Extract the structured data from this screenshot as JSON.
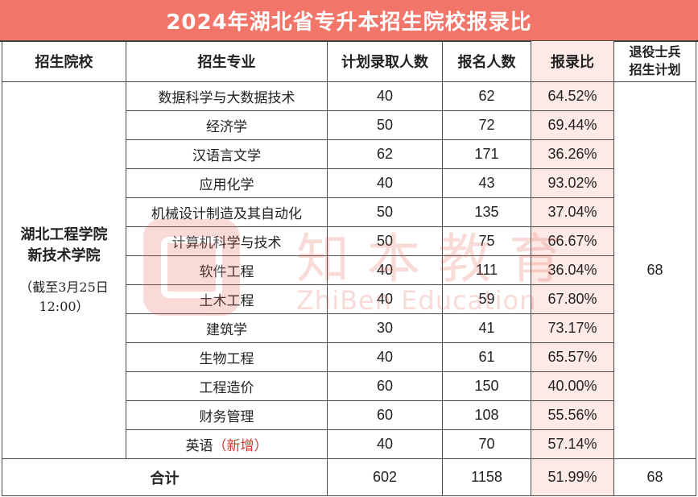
{
  "title": "2024年湖北省专升本招生院校报录比",
  "headers": {
    "school": "招生院校",
    "major": "招生专业",
    "plan": "计划录取人数",
    "applicants": "报名人数",
    "ratio": "报录比",
    "veteran_line1": "退役士兵",
    "veteran_line2": "招生计划"
  },
  "school": {
    "name_line1": "湖北工程学院",
    "name_line2": "新技术学院",
    "note_line1": "（截至3月25日",
    "note_line2": "12:00）"
  },
  "rows": [
    {
      "major": "数据科学与大数据技术",
      "plan": "40",
      "applicants": "62",
      "ratio": "64.52%"
    },
    {
      "major": "经济学",
      "plan": "50",
      "applicants": "72",
      "ratio": "69.44%"
    },
    {
      "major": "汉语言文学",
      "plan": "62",
      "applicants": "171",
      "ratio": "36.26%"
    },
    {
      "major": "应用化学",
      "plan": "40",
      "applicants": "43",
      "ratio": "93.02%"
    },
    {
      "major": "机械设计制造及其自动化",
      "plan": "50",
      "applicants": "135",
      "ratio": "37.04%"
    },
    {
      "major": "计算机科学与技术",
      "plan": "50",
      "applicants": "75",
      "ratio": "66.67%"
    },
    {
      "major": "软件工程",
      "plan": "40",
      "applicants": "111",
      "ratio": "36.04%"
    },
    {
      "major": "土木工程",
      "plan": "40",
      "applicants": "59",
      "ratio": "67.80%"
    },
    {
      "major": "建筑学",
      "plan": "30",
      "applicants": "41",
      "ratio": "73.17%"
    },
    {
      "major": "生物工程",
      "plan": "40",
      "applicants": "61",
      "ratio": "65.57%"
    },
    {
      "major": "工程造价",
      "plan": "60",
      "applicants": "150",
      "ratio": "40.00%"
    },
    {
      "major": "财务管理",
      "plan": "60",
      "applicants": "108",
      "ratio": "55.56%"
    },
    {
      "major": "英语",
      "major_tag": "（新增）",
      "plan": "40",
      "applicants": "70",
      "ratio": "57.14%"
    }
  ],
  "veteran_plan": "68",
  "total": {
    "label": "合计",
    "plan": "602",
    "applicants": "1158",
    "ratio": "51.99%",
    "veteran": "68"
  },
  "watermark": {
    "cn": "知本教育",
    "en": "ZhiBen Education"
  },
  "colors": {
    "title_bg": "#f2756a",
    "ratio_bg": "#fde9e6",
    "new_tag": "#d9342b"
  }
}
